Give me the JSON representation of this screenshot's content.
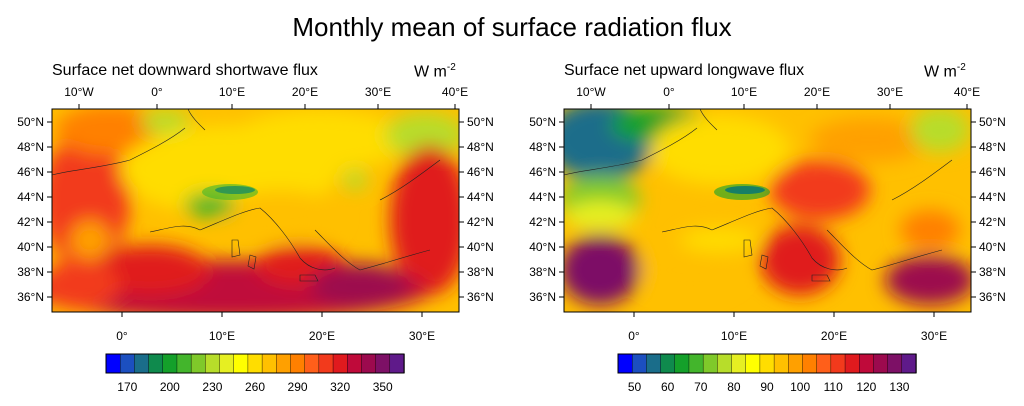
{
  "title": "Monthly mean of surface radiation flux",
  "chart_data": [
    {
      "type": "heatmap",
      "title": "Surface net downward shortwave flux",
      "units": "W m",
      "units_exp": "-2",
      "top_x_ticks": [
        "10°W",
        "0°",
        "10°E",
        "20°E",
        "30°E",
        "40°E"
      ],
      "bottom_x_ticks": [
        "0°",
        "10°E",
        "20°E",
        "30°E"
      ],
      "y_ticks": [
        "50°N",
        "48°N",
        "46°N",
        "44°N",
        "42°N",
        "40°N",
        "38°N",
        "36°N"
      ],
      "colorbar_labels": [
        "170",
        "200",
        "230",
        "260",
        "290",
        "320",
        "350"
      ],
      "colorbar_range": [
        155,
        365
      ],
      "value_range_approx": [
        180,
        360
      ],
      "regions": {
        "north_sea_england": 300,
        "france_west": 320,
        "central_europe": 250,
        "alps": 180,
        "italy": 320,
        "mediterranean_sea": 345,
        "anatolia": 320
      }
    },
    {
      "type": "heatmap",
      "title": "Surface net upward longwave flux",
      "units": "W m",
      "units_exp": "-2",
      "top_x_ticks": [
        "10°W",
        "0°",
        "10°E",
        "20°E",
        "30°E",
        "40°E"
      ],
      "bottom_x_ticks": [
        "0°",
        "10°E",
        "20°E",
        "30°E"
      ],
      "y_ticks": [
        "50°N",
        "48°N",
        "46°N",
        "44°N",
        "42°N",
        "40°N",
        "38°N",
        "36°N"
      ],
      "colorbar_labels": [
        "50",
        "60",
        "70",
        "80",
        "90",
        "100",
        "110",
        "120",
        "130"
      ],
      "colorbar_range": [
        45,
        135
      ],
      "value_range_approx": [
        60,
        130
      ],
      "regions": {
        "north_sea_england": 65,
        "france_west": 75,
        "central_europe": 92,
        "alps": 60,
        "iberia": 125,
        "mediterranean_sea": 90,
        "balkans": 110,
        "anatolia": 125
      }
    }
  ],
  "colors": {
    "palette": [
      "#0000ff",
      "#1c4fc0",
      "#1a6d8a",
      "#0f8a4d",
      "#14a02a",
      "#43b52c",
      "#7fc92a",
      "#b7dd2a",
      "#e6ef22",
      "#ffff00",
      "#ffdd00",
      "#ffc000",
      "#ffa000",
      "#ff8000",
      "#ff5f1a",
      "#f23a1c",
      "#e01a1e",
      "#bf0a3a",
      "#9c0a4e",
      "#7d1066",
      "#5f1a8a"
    ]
  }
}
